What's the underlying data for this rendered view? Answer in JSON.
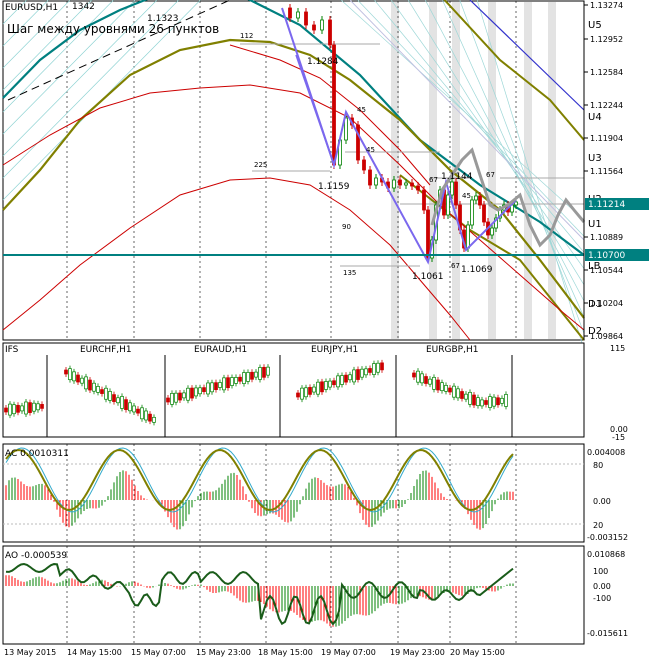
{
  "main_pane": {
    "symbol_label": "EURUSD,H1",
    "subtitle": "Шаг между уровнями 26 пунктов",
    "price_axis": [
      "1.13274",
      "1.12952",
      "1.12584",
      "1.12244",
      "1.11904",
      "1.11564",
      "1.11214",
      "1.10889",
      "1.10700",
      "1.10544",
      "1.10204",
      "1.09864"
    ],
    "current_price": "1.11214",
    "lb_price": "1.10700",
    "level_labels": [
      "U5",
      "U4",
      "U3",
      "U2",
      "U1",
      "LB",
      "D1",
      "D2"
    ],
    "annotations": {
      "price_1342": "1342",
      "price_11323": "1.1323",
      "price_11284": "1.1284",
      "price_11159": "1.1159",
      "price_11144": "1.1144",
      "price_11061": "1.1061",
      "price_11069": "1.1069",
      "n_112": "112",
      "n_225": "225",
      "n_45a": "45",
      "n_45b": "45",
      "n_45c": "45",
      "n_67a": "67",
      "n_67b": "67",
      "n_67c": "67",
      "n_90": "90",
      "n_135": "135"
    }
  },
  "ifs_pane": {
    "title": "IFS",
    "symbols": [
      "EURCHF,H1",
      "EURAUD,H1",
      "EURJPY,H1",
      "EURGBP,H1"
    ],
    "axis": [
      "115",
      "0.00",
      "-15"
    ]
  },
  "ac_pane": {
    "title": "AC 0.0010311",
    "axis_right": [
      "0.004008",
      "80",
      "0.00",
      "20",
      "-0.003152"
    ]
  },
  "ao_pane": {
    "title": "AO -0.000539",
    "axis_right": [
      "0.010868",
      "100",
      "0.00",
      "-100",
      "-0.015611"
    ]
  },
  "time_axis": [
    "13 May 2015",
    "14 May 15:00",
    "15 May 07:00",
    "15 May 23:00",
    "18 May 15:00",
    "19 May 07:00",
    "19 May 23:00",
    "20 May 15:00"
  ],
  "colors": {
    "background": "#ffffff",
    "teal": "#008080",
    "olive": "#808000",
    "red": "#cc0000",
    "bull": "#008000",
    "bear": "#ff0000",
    "zigzag": "#7b68ee",
    "forecast": "#999999"
  },
  "chart_data": [
    {
      "type": "line",
      "title": "EURUSD,H1",
      "subtitle": "Шаг между уровнями 26 пунктов",
      "ylim": [
        1.0975,
        1.133
      ],
      "x": [
        "13 May 2015",
        "14 May 15:00",
        "15 May 07:00",
        "15 May 23:00",
        "18 May 15:00",
        "19 May 07:00",
        "19 May 23:00",
        "20 May 15:00"
      ],
      "series": [],
      "annotations": [
        "1.1323",
        "1.1284",
        "1.1159",
        "1.1144",
        "1.1061",
        "1.1069"
      ],
      "levels": {
        "U5": 1.1305,
        "U4": 1.1214,
        "U3": 1.1172,
        "U2": 1.1127,
        "U1": 1.1096,
        "LB": 1.107,
        "D1": 1.1013,
        "D2": 1.0987
      }
    },
    {
      "type": "bar",
      "title": "AC 0.0010311",
      "ylim": [
        -0.003152,
        0.004008
      ],
      "values_summary": {
        "last": 0.0010311
      }
    },
    {
      "type": "bar",
      "title": "AO -0.000539",
      "ylim": [
        -0.015611,
        0.010868
      ],
      "values_summary": {
        "last": -0.000539
      }
    }
  ]
}
